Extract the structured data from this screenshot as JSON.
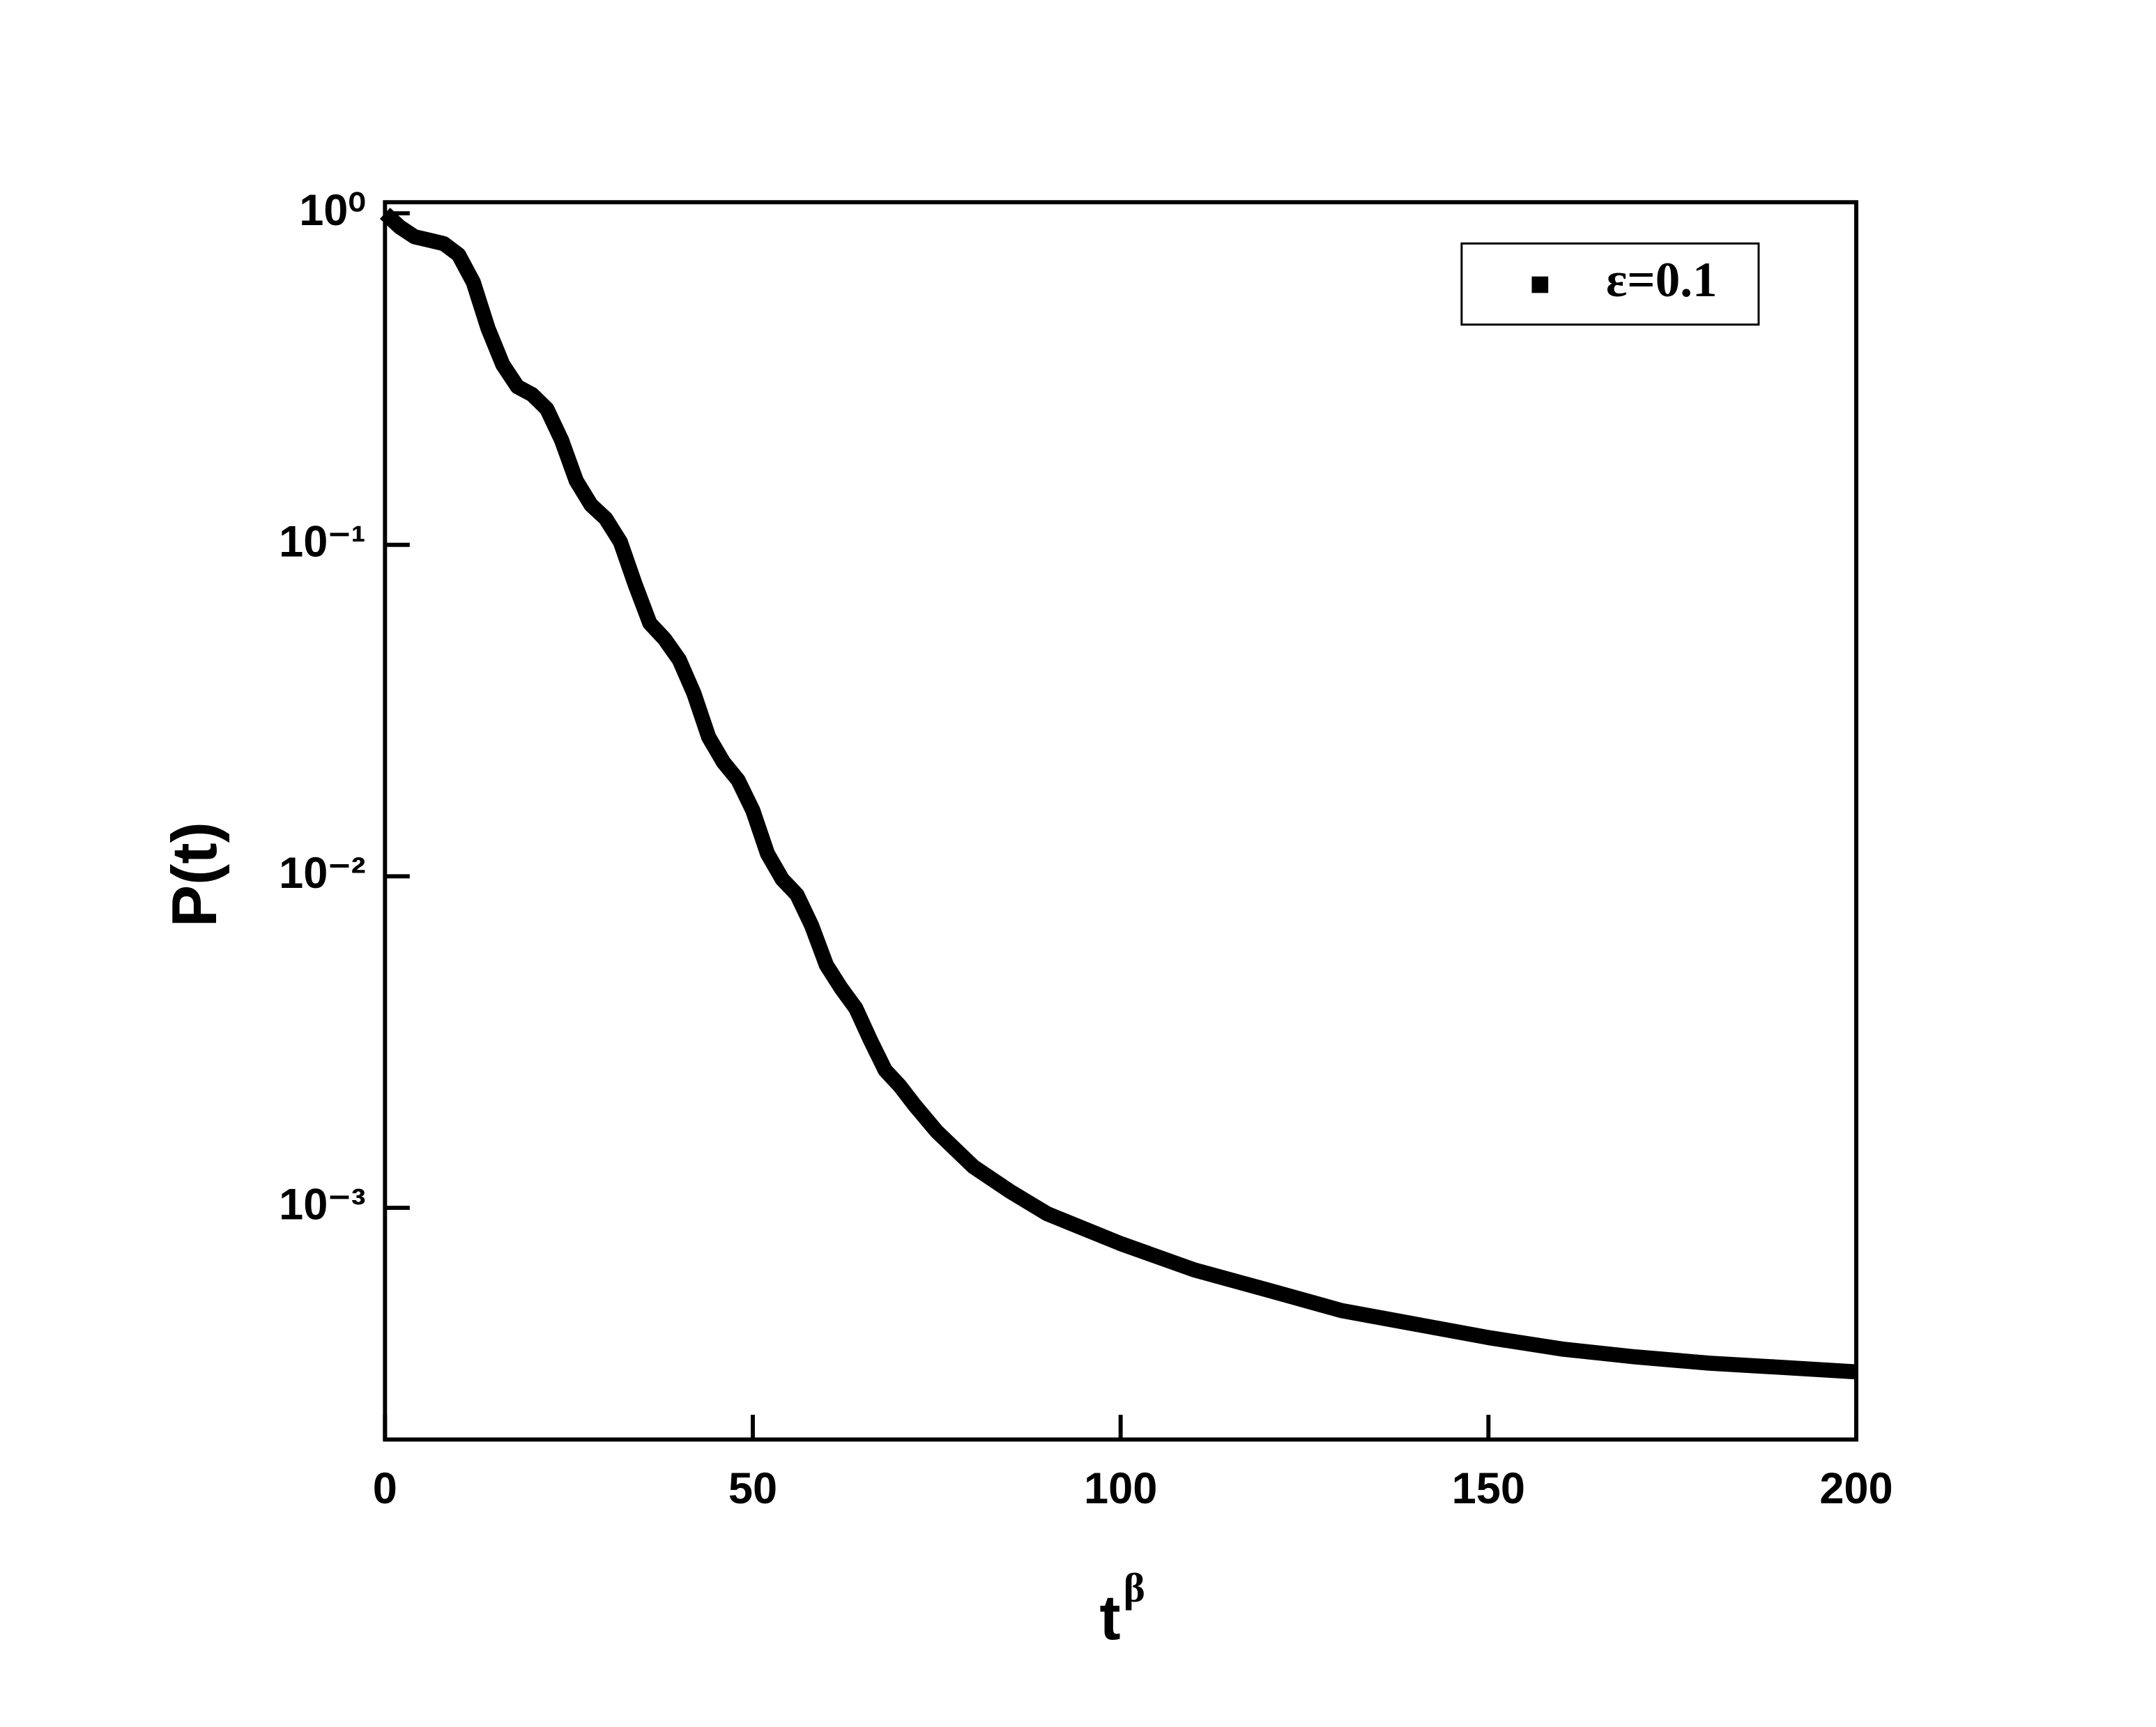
{
  "chart_data": {
    "type": "line",
    "x_label": {
      "base": "t",
      "superscript": "β"
    },
    "y_label": "P(t)",
    "log_y": true,
    "legend": "upper right",
    "series": [
      {
        "name": "ε=0.1",
        "color": "#000000",
        "x": [
          0,
          2,
          4,
          6,
          8,
          10,
          12,
          14,
          16,
          18,
          20,
          22,
          24,
          26,
          28,
          30,
          32,
          34,
          36,
          38,
          40,
          42,
          44,
          46,
          48,
          50,
          52,
          54,
          56,
          58,
          60,
          62,
          64,
          66,
          68,
          70,
          72,
          75,
          80,
          85,
          90,
          100,
          110,
          120,
          130,
          140,
          150,
          160,
          170,
          180,
          190,
          200
        ],
        "values": [
          1.0,
          0.91,
          0.85,
          0.83,
          0.81,
          0.75,
          0.62,
          0.45,
          0.35,
          0.3,
          0.284,
          0.257,
          0.207,
          0.156,
          0.132,
          0.12,
          0.102,
          0.076,
          0.058,
          0.052,
          0.045,
          0.0356,
          0.0263,
          0.0221,
          0.0195,
          0.0158,
          0.0117,
          0.0098,
          0.0088,
          0.0071,
          0.0054,
          0.0046,
          0.004,
          0.0032,
          0.0026,
          0.00233,
          0.00204,
          0.0017,
          0.00133,
          0.00112,
          0.00096,
          0.00078,
          0.00065,
          0.000565,
          0.00049,
          0.000446,
          0.000406,
          0.000375,
          0.000355,
          0.00034,
          0.00033,
          0.00032
        ]
      }
    ],
    "xlim": [
      0,
      200
    ],
    "xticks": [
      0,
      50,
      100,
      150,
      200
    ],
    "ylim": [
      0.0002,
      1.08
    ],
    "yticks": [
      {
        "value": 1,
        "label": "10⁰"
      },
      {
        "value": 0.1,
        "label": "10⁻¹"
      },
      {
        "value": 0.01,
        "label": "10⁻²"
      },
      {
        "value": 0.001,
        "label": "10⁻³"
      }
    ]
  }
}
